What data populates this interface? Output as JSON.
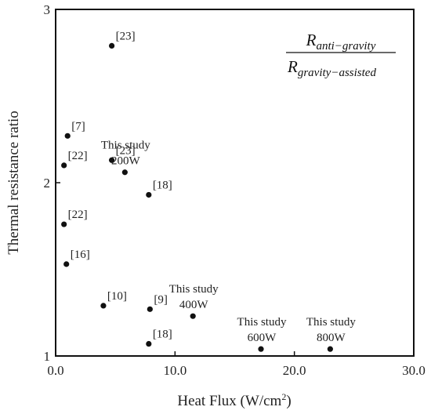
{
  "chart_data": {
    "type": "scatter",
    "xlabel": "Heat Flux (W/cm",
    "xlabel_sup": "2",
    "xlabel_tail": ")",
    "ylabel": "Thermal resistance ratio",
    "xlim": [
      0,
      30
    ],
    "ylim": [
      1,
      3
    ],
    "xticks": [
      "0.0",
      "10.0",
      "20.0",
      "30.0"
    ],
    "yticks": [
      "1",
      "2",
      "3"
    ],
    "grid": false,
    "formula": {
      "numerator_base": "R",
      "numerator_sub": "anti−gravity",
      "denominator_base": "R",
      "denominator_sub": "gravity−assisted"
    },
    "points": [
      {
        "x": 4.7,
        "y": 2.79,
        "label": [
          "[23]"
        ]
      },
      {
        "x": 1.0,
        "y": 2.27,
        "label": [
          "[7]"
        ]
      },
      {
        "x": 0.7,
        "y": 2.1,
        "label": [
          "[22]"
        ]
      },
      {
        "x": 4.7,
        "y": 2.13,
        "label": [
          "[23]"
        ]
      },
      {
        "x": 5.8,
        "y": 2.06,
        "label": [
          "This study",
          "200W"
        ]
      },
      {
        "x": 7.8,
        "y": 1.93,
        "label": [
          "[18]"
        ]
      },
      {
        "x": 0.7,
        "y": 1.76,
        "label": [
          "[22]"
        ]
      },
      {
        "x": 0.9,
        "y": 1.53,
        "label": [
          "[16]"
        ]
      },
      {
        "x": 4.0,
        "y": 1.29,
        "label": [
          "[10]"
        ]
      },
      {
        "x": 7.9,
        "y": 1.27,
        "label": [
          "[9]"
        ]
      },
      {
        "x": 11.5,
        "y": 1.23,
        "label": [
          "This study",
          "400W"
        ]
      },
      {
        "x": 7.8,
        "y": 1.07,
        "label": [
          "[18]"
        ]
      },
      {
        "x": 17.2,
        "y": 1.04,
        "label": [
          "This study",
          "600W"
        ]
      },
      {
        "x": 23.0,
        "y": 1.04,
        "label": [
          "This study",
          "800W"
        ]
      }
    ]
  }
}
